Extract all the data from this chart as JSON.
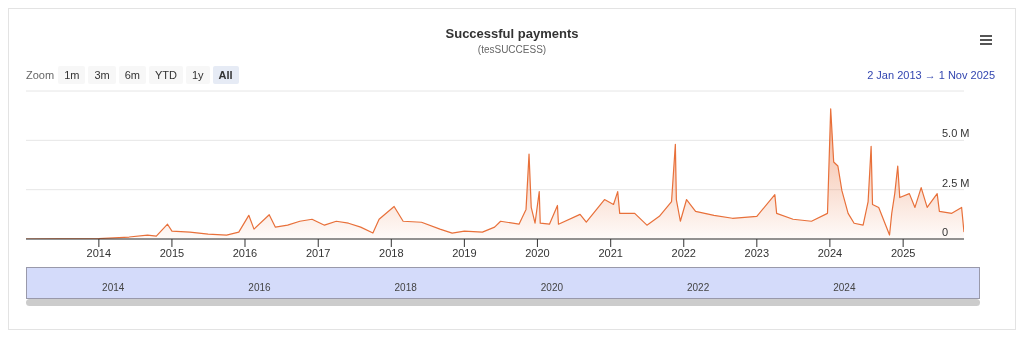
{
  "chart_data": {
    "type": "area",
    "title": "Successful payments",
    "subtitle": "(tesSUCCESS)",
    "annotations": [
      "Zoom",
      "1m",
      "3m",
      "6m",
      "YTD",
      "1y",
      "All",
      "2 Jan 2013 → 1 Nov 2025",
      "2014",
      "2016",
      "2018",
      "2020",
      "2022",
      "2024"
    ],
    "x": [
      "2013-01-02",
      "2013-06-01",
      "2014-01-01",
      "2014-06-01",
      "2014-09-01",
      "2014-10-15",
      "2014-12-10",
      "2015-01-01",
      "2015-04-01",
      "2015-07-01",
      "2015-10-01",
      "2015-12-01",
      "2016-01-20",
      "2016-02-15",
      "2016-05-01",
      "2016-06-01",
      "2016-08-01",
      "2016-10-01",
      "2016-12-01",
      "2017-02-01",
      "2017-04-01",
      "2017-06-01",
      "2017-08-01",
      "2017-10-01",
      "2017-11-01",
      "2018-01-15",
      "2018-03-01",
      "2018-06-01",
      "2018-09-01",
      "2018-11-01",
      "2019-01-01",
      "2019-04-01",
      "2019-06-01",
      "2019-07-01",
      "2019-10-01",
      "2019-11-05",
      "2019-11-20",
      "2019-12-01",
      "2019-12-20",
      "2020-01-10",
      "2020-01-15",
      "2020-03-01",
      "2020-04-10",
      "2020-04-15",
      "2020-08-01",
      "2020-09-01",
      "2020-12-01",
      "2021-01-15",
      "2021-02-05",
      "2021-02-15",
      "2021-05-01",
      "2021-07-01",
      "2021-09-01",
      "2021-11-01",
      "2021-11-20",
      "2021-11-25",
      "2021-12-15",
      "2022-01-15",
      "2022-03-01",
      "2022-06-01",
      "2022-09-01",
      "2023-01-01",
      "2023-04-01",
      "2023-04-10",
      "2023-07-01",
      "2023-10-01",
      "2023-12-20",
      "2024-01-05",
      "2024-01-20",
      "2024-02-10",
      "2024-03-01",
      "2024-04-01",
      "2024-05-01",
      "2024-06-15",
      "2024-07-10",
      "2024-07-25",
      "2024-08-01",
      "2024-09-01",
      "2024-10-25",
      "2024-11-05",
      "2024-11-20",
      "2024-12-05",
      "2024-12-15",
      "2025-02-01",
      "2025-03-01",
      "2025-04-01",
      "2025-05-01",
      "2025-06-20",
      "2025-07-01",
      "2025-09-01",
      "2025-10-20",
      "2025-11-01"
    ],
    "series": [
      {
        "color": "#e8703a",
        "values": [
          0,
          10000,
          20000,
          100000,
          200000,
          150000,
          750000,
          400000,
          350000,
          250000,
          200000,
          350000,
          1200000,
          500000,
          1230000,
          600000,
          700000,
          900000,
          1000000,
          700000,
          900000,
          800000,
          600000,
          300000,
          1000000,
          1650000,
          900000,
          850000,
          500000,
          300000,
          400000,
          350000,
          600000,
          900000,
          750000,
          1500000,
          4300000,
          1600000,
          800000,
          2400000,
          800000,
          750000,
          1700000,
          750000,
          1250000,
          850000,
          2000000,
          1750000,
          2400000,
          1300000,
          1300000,
          700000,
          1150000,
          1900000,
          4800000,
          2000000,
          900000,
          2000000,
          1400000,
          1200000,
          1050000,
          1150000,
          2250000,
          1300000,
          1000000,
          900000,
          1300000,
          6600000,
          3900000,
          3700000,
          2450000,
          1300000,
          800000,
          700000,
          1900000,
          4700000,
          1750000,
          1600000,
          200000,
          1300000,
          2300000,
          3700000,
          2100000,
          2300000,
          1600000,
          2600000,
          1600000,
          2300000,
          1400000,
          1300000,
          1600000,
          350000
        ]
      }
    ],
    "xlim": [
      "2013-01-02",
      "2025-11-01"
    ],
    "xticks": [
      "2014",
      "2015",
      "2016",
      "2017",
      "2018",
      "2019",
      "2020",
      "2021",
      "2022",
      "2023",
      "2024",
      "2025"
    ],
    "ylim": [
      0,
      7500000
    ],
    "yticks": [
      0,
      {
        "value": 2500000,
        "label": "2.5 M"
      },
      {
        "value": 5000000,
        "label": "5.0 M"
      },
      {
        "value": 7500000,
        "label": null
      }
    ],
    "grid": "y",
    "legend": false
  }
}
